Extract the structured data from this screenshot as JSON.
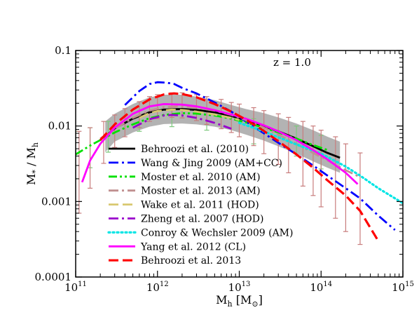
{
  "chart_data": {
    "type": "line",
    "title": "",
    "annotation": "z = 1.0",
    "xlabel": {
      "base": "M",
      "sub": "h",
      "units_prefix": " [M",
      "units_sub": "⊙",
      "units_suffix": "]"
    },
    "ylabel": {
      "base": "M",
      "sub1": "*",
      "sep": " / M",
      "sub2": "h"
    },
    "x_scale": "log",
    "y_scale": "log",
    "xlim": [
      100000000000.0,
      1000000000000000.0
    ],
    "ylim": [
      0.0001,
      0.1
    ],
    "x_ticks": [
      {
        "value": 100000000000.0,
        "base": "10",
        "exp": "11"
      },
      {
        "value": 1000000000000.0,
        "base": "10",
        "exp": "12"
      },
      {
        "value": 10000000000000.0,
        "base": "10",
        "exp": "13"
      },
      {
        "value": 100000000000000.0,
        "base": "10",
        "exp": "14"
      },
      {
        "value": 1000000000000000.0,
        "base": "10",
        "exp": "15"
      }
    ],
    "y_ticks": [
      {
        "value": 0.0001,
        "label": "0.0001"
      },
      {
        "value": 0.001,
        "label": "0.001"
      },
      {
        "value": 0.01,
        "label": "0.01"
      },
      {
        "value": 0.1,
        "label": "0.1"
      }
    ],
    "grid": false,
    "legend_position": "lower-left",
    "band": {
      "color": "#b3b3b3",
      "x": [
        230000000000.0,
        300000000000.0,
        500000000000.0,
        800000000000.0,
        1200000000000.0,
        2000000000000.0,
        3000000000000.0,
        5000000000000.0,
        8000000000000.0,
        12000000000000.0,
        20000000000000.0,
        30000000000000.0,
        50000000000000.0,
        80000000000000.0,
        120000000000000.0,
        170000000000000.0
      ],
      "upper": [
        0.0115,
        0.0145,
        0.0195,
        0.024,
        0.026,
        0.026,
        0.0245,
        0.022,
        0.019,
        0.0168,
        0.0148,
        0.013,
        0.0108,
        0.0088,
        0.0072,
        0.0062
      ],
      "lower": [
        0.0045,
        0.0062,
        0.0082,
        0.0098,
        0.0106,
        0.0108,
        0.0105,
        0.0098,
        0.0088,
        0.0077,
        0.0064,
        0.0054,
        0.0043,
        0.0034,
        0.0028,
        0.0024
      ]
    },
    "error_points": [
      {
        "name": "",
        "color": "#7dc97d",
        "x": [
          100000000000.0,
          150000000000.0,
          250000000000.0,
          600000000000.0,
          1500000000000.0,
          4000000000000.0,
          15000000000000.0,
          50000000000000.0,
          100000000000000.0
        ],
        "y": [
          0.0045,
          0.0055,
          0.0075,
          0.012,
          0.0135,
          0.0125,
          0.009,
          0.007,
          0.005
        ],
        "err_up": [
          0.0085,
          0.0095,
          0.0115,
          0.016,
          0.017,
          0.0165,
          0.0125,
          0.01,
          0.0075
        ],
        "err_down": [
          0.002,
          0.0028,
          0.0045,
          0.0085,
          0.0098,
          0.0088,
          0.0058,
          0.004,
          0.0027
        ]
      },
      {
        "name": "",
        "color": "#c87c7c",
        "x": [
          110000000000.0,
          150000000000.0,
          220000000000.0,
          300000000000.0,
          400000000000.0,
          600000000000.0,
          800000000000.0,
          1000000000000.0,
          1500000000000.0,
          2000000000000.0,
          3000000000000.0,
          4000000000000.0,
          6000000000000.0,
          8000000000000.0,
          10000000000000.0,
          15000000000000.0,
          20000000000000.0,
          30000000000000.0,
          40000000000000.0,
          60000000000000.0,
          80000000000000.0,
          100000000000000.0,
          150000000000000.0,
          200000000000000.0,
          300000000000000.0
        ],
        "y": [
          0.003,
          0.0045,
          0.007,
          0.0095,
          0.0125,
          0.016,
          0.019,
          0.02,
          0.021,
          0.0205,
          0.019,
          0.0175,
          0.016,
          0.0145,
          0.0132,
          0.0112,
          0.0097,
          0.0078,
          0.0068,
          0.0054,
          0.0044,
          0.0036,
          0.0026,
          0.0019,
          0.0013
        ],
        "err_up": [
          0.0085,
          0.0095,
          0.0115,
          0.014,
          0.017,
          0.021,
          0.0245,
          0.026,
          0.0275,
          0.0275,
          0.026,
          0.0245,
          0.0225,
          0.0205,
          0.0195,
          0.0175,
          0.016,
          0.0145,
          0.013,
          0.0115,
          0.01,
          0.0088,
          0.0072,
          0.0058,
          0.0044
        ],
        "err_down": [
          0.0007,
          0.0015,
          0.0032,
          0.0052,
          0.0072,
          0.0095,
          0.0115,
          0.0125,
          0.013,
          0.0128,
          0.0118,
          0.0105,
          0.0092,
          0.0082,
          0.0072,
          0.0055,
          0.0043,
          0.0031,
          0.0024,
          0.0016,
          0.0012,
          0.00085,
          0.0006,
          0.0004,
          0.00027
        ]
      }
    ],
    "series": [
      {
        "name": "Behroozi et al. (2010)",
        "color": "#000000",
        "dash": "solid",
        "width": 2.8,
        "x": [
          230000000000.0,
          300000000000.0,
          500000000000.0,
          800000000000.0,
          1200000000000.0,
          2000000000000.0,
          3000000000000.0,
          5000000000000.0,
          8000000000000.0,
          12000000000000.0,
          20000000000000.0,
          30000000000000.0,
          50000000000000.0,
          80000000000000.0,
          120000000000000.0,
          170000000000000.0
        ],
        "y": [
          0.0072,
          0.0093,
          0.0125,
          0.0152,
          0.0165,
          0.0168,
          0.0163,
          0.0152,
          0.0136,
          0.0119,
          0.0099,
          0.0085,
          0.0068,
          0.0054,
          0.0044,
          0.0038
        ]
      },
      {
        "name": "Wang & Jing 2009 (AM+CC)",
        "color": "#0000ff",
        "dash": "dashdot",
        "width": 2.8,
        "x": [
          400000000000.0,
          600000000000.0,
          800000000000.0,
          1000000000000.0,
          1300000000000.0,
          1600000000000.0,
          2000000000000.0,
          3000000000000.0,
          5000000000000.0,
          8000000000000.0,
          12000000000000.0,
          20000000000000.0,
          30000000000000.0,
          50000000000000.0,
          80000000000000.0,
          120000000000000.0,
          200000000000000.0,
          300000000000000.0,
          500000000000000.0,
          800000000000000.0
        ],
        "y": [
          0.019,
          0.029,
          0.036,
          0.038,
          0.0375,
          0.036,
          0.032,
          0.027,
          0.0205,
          0.0155,
          0.0115,
          0.008,
          0.006,
          0.0042,
          0.003,
          0.0022,
          0.0015,
          0.0011,
          0.00065,
          0.00042
        ]
      },
      {
        "name": "Moster et al. 2010 (AM)",
        "color": "#00e000",
        "dash": "dashdotdot",
        "width": 2.8,
        "x": [
          100000000000.0,
          150000000000.0,
          200000000000.0,
          300000000000.0,
          500000000000.0,
          800000000000.0,
          1200000000000.0,
          2000000000000.0,
          3000000000000.0,
          5000000000000.0,
          8000000000000.0,
          12000000000000.0,
          20000000000000.0,
          30000000000000.0,
          50000000000000.0,
          80000000000000.0,
          120000000000000.0
        ],
        "y": [
          0.0042,
          0.0055,
          0.0065,
          0.0082,
          0.0105,
          0.0127,
          0.014,
          0.0148,
          0.0146,
          0.0138,
          0.0125,
          0.0112,
          0.0095,
          0.0082,
          0.0068,
          0.0056,
          0.0048
        ]
      },
      {
        "name": "Moster et al. 2013 (AM)",
        "color": "#c09090",
        "dash": "dashdot",
        "width": 2.8,
        "x": [
          200000000000.0,
          300000000000.0,
          500000000000.0,
          800000000000.0,
          1200000000000.0,
          2000000000000.0,
          3000000000000.0,
          5000000000000.0,
          8000000000000.0,
          12000000000000.0,
          20000000000000.0,
          30000000000000.0,
          50000000000000.0,
          80000000000000.0,
          120000000000000.0,
          200000000000000.0,
          300000000000000.0
        ],
        "y": [
          0.0068,
          0.0092,
          0.0128,
          0.016,
          0.0178,
          0.0182,
          0.0175,
          0.016,
          0.014,
          0.012,
          0.0095,
          0.0077,
          0.0058,
          0.0044,
          0.0035,
          0.0026,
          0.0021
        ]
      },
      {
        "name": "Wake et al. 2011 (HOD)",
        "color": "#d8c870",
        "dash": "dashed",
        "width": 2.8,
        "x": [
          600000000000.0,
          800000000000.0,
          1000000000000.0,
          1500000000000.0,
          2000000000000.0,
          3000000000000.0,
          5000000000000.0,
          8000000000000.0,
          10000000000000.0
        ],
        "y": [
          0.0128,
          0.0148,
          0.0158,
          0.0165,
          0.0163,
          0.0155,
          0.0142,
          0.0128,
          0.012
        ]
      },
      {
        "name": "Zheng et al. 2007 (HOD)",
        "color": "#9900cc",
        "dash": "dashdot",
        "width": 2.8,
        "x": [
          500000000000.0,
          800000000000.0,
          1200000000000.0,
          1500000000000.0,
          2000000000000.0,
          3000000000000.0,
          5000000000000.0,
          8000000000000.0
        ],
        "y": [
          0.0095,
          0.0123,
          0.0138,
          0.014,
          0.0138,
          0.0128,
          0.011,
          0.0092
        ]
      },
      {
        "name": "Conroy & Wechsler 2009 (AM)",
        "color": "#00e5e5",
        "dash": "dotted",
        "width": 3.2,
        "x": [
          10000000000000.0,
          20000000000000.0,
          30000000000000.0,
          50000000000000.0,
          100000000000000.0,
          200000000000000.0,
          300000000000000.0,
          500000000000000.0,
          1000000000000000.0
        ],
        "y": [
          0.011,
          0.0085,
          0.0071,
          0.0057,
          0.0043,
          0.0029,
          0.0022,
          0.0015,
          0.00095
        ]
      },
      {
        "name": "Yang et al. 2012 (CL)",
        "color": "#ff00ff",
        "dash": "solid",
        "width": 2.8,
        "x": [
          120000000000.0,
          150000000000.0,
          200000000000.0,
          300000000000.0,
          500000000000.0,
          800000000000.0,
          1200000000000.0,
          2000000000000.0,
          3000000000000.0,
          5000000000000.0,
          8000000000000.0,
          12000000000000.0,
          20000000000000.0,
          30000000000000.0,
          50000000000000.0,
          80000000000000.0,
          120000000000000.0,
          200000000000000.0,
          280000000000000.0
        ],
        "y": [
          0.0018,
          0.0035,
          0.0058,
          0.0095,
          0.0145,
          0.0182,
          0.0195,
          0.0192,
          0.0182,
          0.0162,
          0.0142,
          0.0125,
          0.0102,
          0.0085,
          0.0065,
          0.0048,
          0.0036,
          0.0024,
          0.0017
        ]
      },
      {
        "name": "Behroozi et al. 2013",
        "color": "#ff0000",
        "dash": "dashed",
        "width": 3.2,
        "x": [
          200000000000.0,
          300000000000.0,
          500000000000.0,
          800000000000.0,
          1200000000000.0,
          1600000000000.0,
          2000000000000.0,
          3000000000000.0,
          5000000000000.0,
          8000000000000.0,
          12000000000000.0,
          20000000000000.0,
          30000000000000.0,
          50000000000000.0,
          80000000000000.0,
          120000000000000.0,
          200000000000000.0,
          300000000000000.0,
          500000000000000.0
        ],
        "y": [
          0.0065,
          0.0105,
          0.0165,
          0.0225,
          0.0262,
          0.027,
          0.0265,
          0.024,
          0.0195,
          0.0155,
          0.0122,
          0.0086,
          0.0063,
          0.0042,
          0.0028,
          0.0019,
          0.0012,
          0.00075,
          0.0003
        ]
      }
    ]
  }
}
